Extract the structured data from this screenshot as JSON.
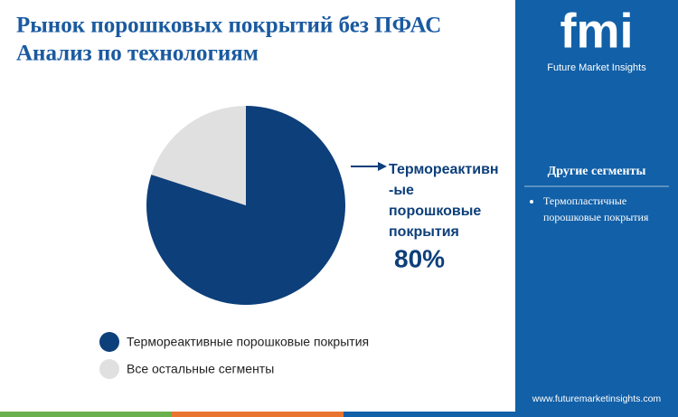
{
  "chart_data": {
    "type": "pie",
    "title": "Рынок порошковых покрытий без ПФАС",
    "subtitle": "Анализ по технологиям",
    "categories": [
      "Термореактивные порошковые покрытия",
      "Все остальные сегменты"
    ],
    "values": [
      80,
      20
    ],
    "value_labels": [
      "80%",
      null
    ],
    "colors": [
      "#0d3f7a",
      "#e0e0e0"
    ],
    "callout": [
      "Термореактивн",
      "-ые",
      "порошковые",
      "покрытия"
    ]
  },
  "sidebar": {
    "logo": "fmi",
    "brand": "Future Market Insights",
    "heading": "Другие сегменты",
    "items": [
      [
        "Термопластичные",
        "порошковые покрытия"
      ]
    ],
    "url": "www.futuremarketinsights.com"
  }
}
